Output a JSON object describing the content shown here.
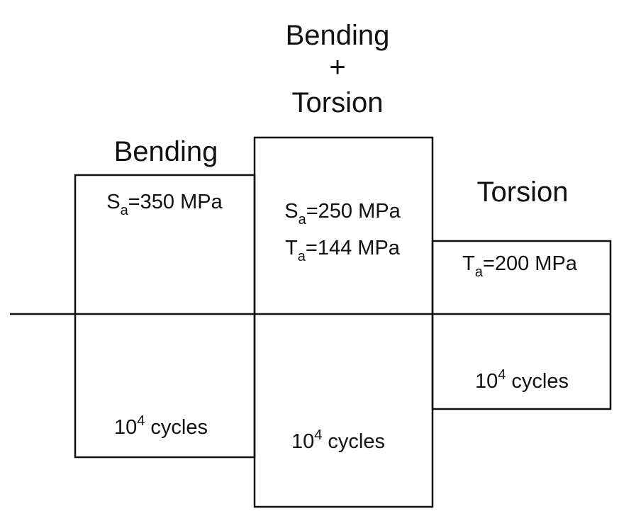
{
  "headers": {
    "combined_top": "Bending",
    "combined_plus": "+",
    "combined_bottom": "Torsion",
    "bending": "Bending",
    "torsion": "Torsion"
  },
  "boxes": {
    "bending": {
      "stress_symbol": "S",
      "stress_subscript": "a",
      "stress_value": "=350 MPa",
      "cycles_base": "10",
      "cycles_exp": "4",
      "cycles_unit": " cycles"
    },
    "combined": {
      "normal_symbol": "S",
      "normal_subscript": "a",
      "normal_value": "=250 MPa",
      "shear_symbol": "T",
      "shear_subscript": "a",
      "shear_value": "=144 MPa",
      "cycles_base": "10",
      "cycles_exp": "4",
      "cycles_unit": " cycles"
    },
    "torsion": {
      "shear_symbol": "T",
      "shear_subscript": "a",
      "shear_value": "=200 MPa",
      "cycles_base": "10",
      "cycles_exp": "4",
      "cycles_unit": " cycles"
    }
  }
}
